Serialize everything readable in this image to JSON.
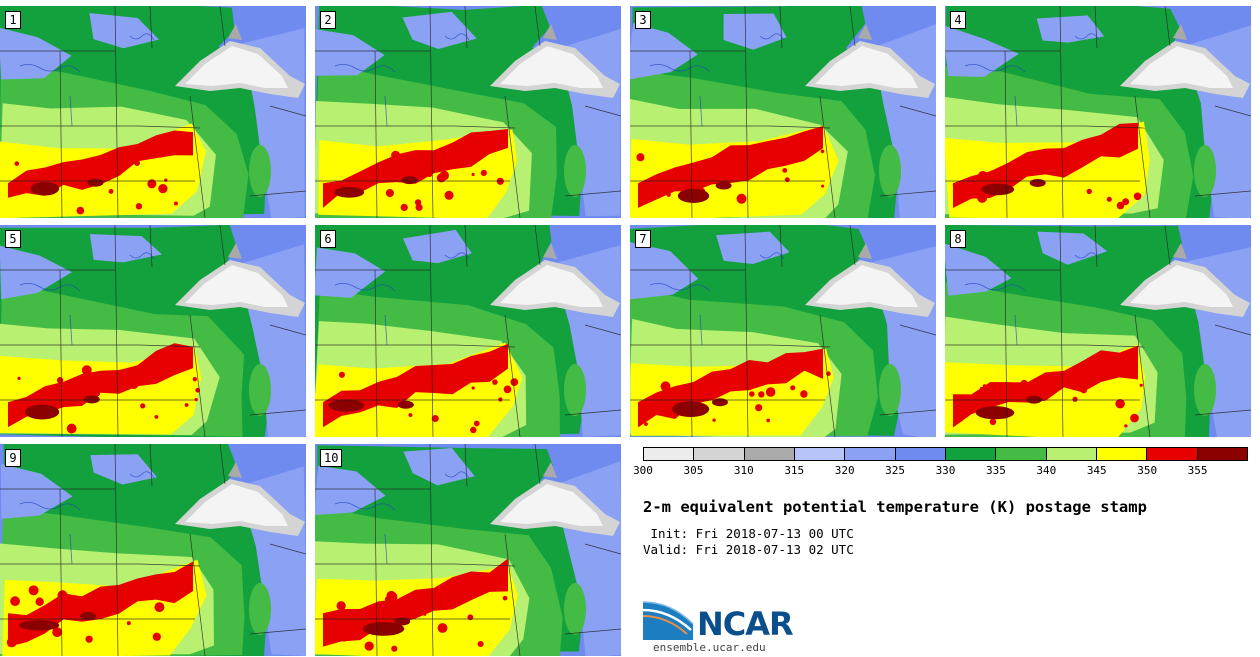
{
  "panels": [
    {
      "label": "1",
      "member": 1
    },
    {
      "label": "2",
      "member": 2
    },
    {
      "label": "3",
      "member": 3
    },
    {
      "label": "4",
      "member": 4
    },
    {
      "label": "5",
      "member": 5
    },
    {
      "label": "6",
      "member": 6
    },
    {
      "label": "7",
      "member": 7
    },
    {
      "label": "8",
      "member": 8
    },
    {
      "label": "9",
      "member": 9
    },
    {
      "label": "10",
      "member": 10
    }
  ],
  "colorbar": {
    "colors": [
      "#ececec",
      "#d4d4d4",
      "#aaaaaa",
      "#b6c4f9",
      "#8aa1f4",
      "#6f8bf0",
      "#13a13e",
      "#44bb44",
      "#b8f071",
      "#ffff00",
      "#e60000",
      "#8b0000"
    ],
    "tick_labels": [
      "300",
      "305",
      "310",
      "315",
      "320",
      "325",
      "330",
      "335",
      "340",
      "345",
      "350",
      "355"
    ]
  },
  "title": "2-m equivalent potential temperature (K) postage stamp",
  "init_line": " Init: Fri 2018-07-13 00 UTC",
  "valid_line": "Valid: Fri 2018-07-13 02 UTC",
  "logo": {
    "name": "NCAR",
    "url": "ensemble.ucar.edu"
  }
}
